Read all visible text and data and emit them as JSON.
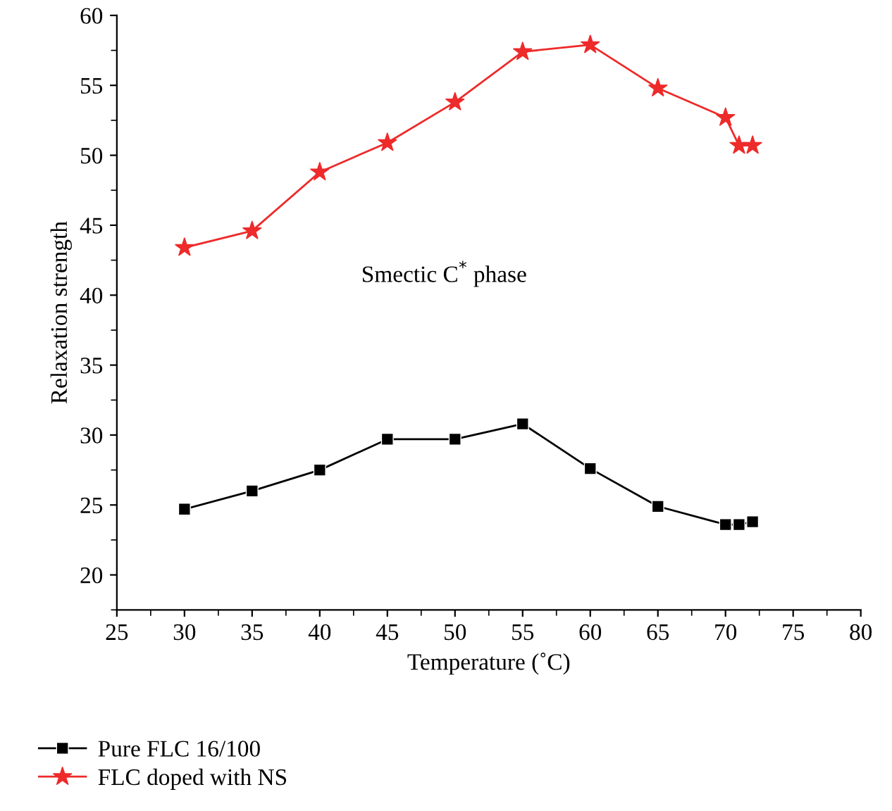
{
  "chart_data": {
    "type": "line",
    "xlabel": "Temperature (˚C)",
    "ylabel": "Relaxation strength",
    "annotations": [
      "Smectic C$^{*}$ phase"
    ],
    "xlim": [
      25,
      80
    ],
    "xticks": [
      25,
      30,
      35,
      40,
      45,
      50,
      55,
      60,
      65,
      70,
      75,
      80
    ],
    "ylim": [
      17.5,
      60
    ],
    "yticks": [
      20,
      25,
      30,
      35,
      40,
      45,
      50,
      55,
      60
    ],
    "grid": false,
    "legend": "bottom",
    "line_style": "solid",
    "series": [
      {
        "name": "Pure FLC 16/100",
        "color": "#000000",
        "marker": "square",
        "x": [
          30,
          35,
          40,
          45,
          50,
          55,
          60,
          65,
          70,
          71,
          72
        ],
        "values": [
          24.7,
          26.0,
          27.5,
          29.7,
          29.7,
          30.8,
          27.6,
          24.9,
          23.6,
          23.6,
          23.8
        ]
      },
      {
        "name": "FLC doped with NS",
        "color": "#ee2a2a",
        "marker": "star",
        "x": [
          30,
          35,
          40,
          45,
          50,
          55,
          60,
          65,
          70,
          71,
          72
        ],
        "values": [
          43.4,
          44.6,
          48.8,
          50.9,
          53.8,
          57.4,
          57.9,
          54.8,
          52.7,
          50.7,
          50.7
        ]
      }
    ]
  }
}
